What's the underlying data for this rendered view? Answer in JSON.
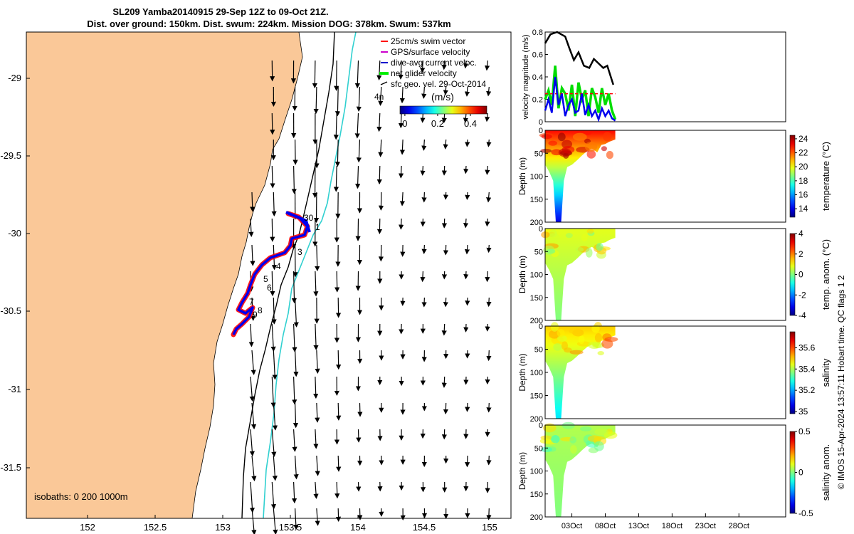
{
  "title": {
    "line1": "SL209 Yamba20140915 29-Sep 12Z to 09-Oct 21Z.",
    "line2": "Dist. over ground: 150km. Dist. swum: 224km. Mission DOG: 378km. Swum: 537km"
  },
  "map": {
    "legend": [
      {
        "label": "25cm/s swim vector",
        "color": "#ff0000"
      },
      {
        "label": "GPS/surface velocity",
        "color": "#cc00cc"
      },
      {
        "label": "dive-avg current veloc.",
        "color": "#0000cc"
      },
      {
        "label": "net glider velocity",
        "color": "#00ee00"
      },
      {
        "label": "sfc geo. vel. 29-Oct-2014",
        "color": "#000000"
      }
    ],
    "colorbar_unit": "(m/s)",
    "colorbar_ticks": [
      "0",
      "0.2",
      "0.4"
    ],
    "colorbar_range": [
      -0.03,
      0.5
    ],
    "arrow_scale_label": "4n",
    "isobaths_label": "isobaths: 0   200   1000m",
    "x_ticks": [
      "152",
      "152.5",
      "153",
      "153.5",
      "154",
      "154.5",
      "155"
    ],
    "y_ticks": [
      "-29",
      "-29.5",
      "-30",
      "-30.5",
      "-31",
      "-31.5"
    ],
    "waypoints": [
      "30",
      "1",
      "3",
      "4",
      "5",
      "6",
      "7",
      "8",
      "9"
    ]
  },
  "chart_data": [
    {
      "type": "line",
      "title": "",
      "ylabel": "velocity magnitude (m/s)",
      "ylim": [
        0,
        0.8
      ],
      "yticks": [
        "0",
        "0.2",
        "0.4",
        "0.6",
        "0.8"
      ],
      "x_unit": "days since 29-Sep",
      "xlim": [
        0,
        36
      ],
      "series": [
        {
          "name": "swim speed (black)",
          "color": "#000000",
          "x": [
            0,
            0.8,
            1.8,
            3.0,
            3.6,
            4.3,
            5.0,
            5.8,
            6.6,
            7.3,
            8.0,
            8.7,
            9.3,
            10.2
          ],
          "values": [
            0.7,
            0.78,
            0.8,
            0.76,
            0.66,
            0.55,
            0.62,
            0.5,
            0.48,
            0.56,
            0.52,
            0.48,
            0.5,
            0.33
          ]
        },
        {
          "name": "net glider velocity (green)",
          "color": "#00dd00",
          "x": [
            0,
            0.5,
            1,
            1.5,
            2,
            2.5,
            3,
            3.5,
            4,
            4.5,
            5,
            5.5,
            6,
            6.5,
            7,
            7.5,
            8,
            8.5,
            9,
            9.5,
            10,
            10.5
          ],
          "values": [
            0.2,
            0.28,
            0.15,
            0.5,
            0.12,
            0.3,
            0.25,
            0.1,
            0.33,
            0.05,
            0.35,
            0.2,
            0.28,
            0.05,
            0.3,
            0.22,
            0.08,
            0.3,
            0.15,
            0.25,
            0.1,
            0.02
          ]
        },
        {
          "name": "swim vector (red dashed)",
          "color": "#ff0000",
          "x": [
            0,
            10.5
          ],
          "values": [
            0.25,
            0.25
          ]
        },
        {
          "name": "dive-avg current (blue)",
          "color": "#0000ee",
          "x": [
            0,
            0.5,
            1,
            1.5,
            2,
            2.5,
            3,
            3.5,
            4,
            4.5,
            5,
            5.5,
            6,
            6.5,
            7,
            7.5,
            8,
            8.5,
            9,
            9.5,
            10,
            10.5
          ],
          "values": [
            0.1,
            0.2,
            0.08,
            0.4,
            0.15,
            0.25,
            0.05,
            0.15,
            0.2,
            0.08,
            0.1,
            0.25,
            0.06,
            0.15,
            0.05,
            0.1,
            0.02,
            0.12,
            0.05,
            0.1,
            0.03,
            0.01
          ]
        }
      ]
    },
    {
      "type": "heatmap",
      "variable": "temperature",
      "ylabel": "Depth (m)",
      "colorbar_label": "temperature (°C)",
      "colorbar_ticks": [
        "14",
        "16",
        "18",
        "20",
        "22",
        "24"
      ],
      "clim": [
        12.8,
        24.5
      ],
      "ylim": [
        0,
        200
      ],
      "yticks": [
        "0",
        "50",
        "100",
        "150",
        "200"
      ],
      "xlim": [
        0,
        36
      ],
      "profile_depth": [
        [
          0,
          80
        ],
        [
          0.8,
          95
        ],
        [
          1.5,
          130
        ],
        [
          2.2,
          200
        ],
        [
          3.2,
          200
        ],
        [
          3.8,
          90
        ],
        [
          4.5,
          100
        ],
        [
          5.5,
          80
        ],
        [
          6.5,
          60
        ],
        [
          7.2,
          45
        ],
        [
          8,
          50
        ],
        [
          8.8,
          35
        ],
        [
          9.5,
          40
        ],
        [
          10.5,
          25
        ]
      ],
      "surface_value": 23,
      "deep_value": 14
    },
    {
      "type": "heatmap",
      "variable": "temperature anomaly",
      "ylabel": "Depth (m)",
      "colorbar_label": "temp. anom. (°C)",
      "colorbar_ticks": [
        "-4",
        "-2",
        "0",
        "2",
        "4"
      ],
      "clim": [
        -4,
        4
      ],
      "ylim": [
        0,
        200
      ],
      "yticks": [
        "0",
        "50",
        "100",
        "150",
        "200"
      ],
      "xlim": [
        0,
        36
      ],
      "surface_value": 0.8,
      "deep_value": 0
    },
    {
      "type": "heatmap",
      "variable": "salinity",
      "ylabel": "Depth (m)",
      "colorbar_label": "salinity",
      "colorbar_ticks": [
        "35",
        "35.2",
        "35.4",
        "35.6"
      ],
      "clim": [
        34.98,
        35.75
      ],
      "ylim": [
        0,
        200
      ],
      "yticks": [
        "0",
        "50",
        "100",
        "150",
        "200"
      ],
      "xlim": [
        0,
        36
      ],
      "surface_value": 35.5,
      "deep_value": 35.25
    },
    {
      "type": "heatmap",
      "variable": "salinity anomaly",
      "ylabel": "Depth (m)",
      "colorbar_label": "salinity anom.",
      "colorbar_ticks": [
        "-0.5",
        "0",
        "0.5"
      ],
      "clim": [
        -0.5,
        0.5
      ],
      "ylim": [
        0,
        200
      ],
      "yticks": [
        "0",
        "50",
        "100",
        "150",
        "200"
      ],
      "xlim": [
        0,
        36
      ],
      "x_ticks": [
        "03Oct",
        "08Oct",
        "13Oct",
        "18Oct",
        "23Oct",
        "28Oct"
      ],
      "x_tick_days": [
        4,
        9,
        14,
        19,
        24,
        29
      ],
      "surface_value": 0.05,
      "deep_value": 0
    }
  ],
  "footer": {
    "side_text": "© IMOS 15-Apr-2024 13:57:11 Hobart time. QC flags 1  2"
  }
}
